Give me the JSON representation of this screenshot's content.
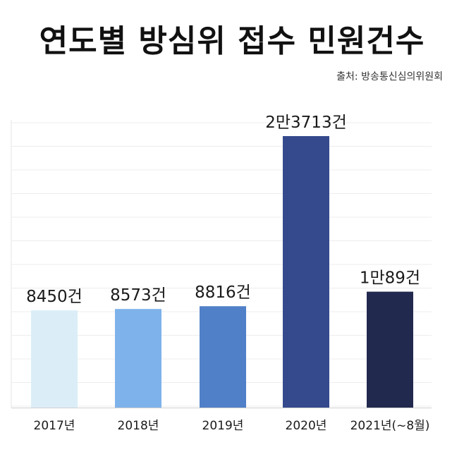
{
  "source": "출처: 방송통신심의위원회",
  "chart_data": {
    "type": "bar",
    "title": "연도별 방심위 접수 민원건수",
    "xlabel": "",
    "ylabel": "",
    "categories": [
      "2017년",
      "2018년",
      "2019년",
      "2020년",
      "2021년(~8월)"
    ],
    "values": [
      8450,
      8573,
      8816,
      23713,
      10089
    ],
    "data_labels": [
      "8450건",
      "8573건",
      "8816건",
      "2만3713건",
      "1만89건"
    ],
    "colors": [
      "#dbeef8",
      "#7eb2ea",
      "#5080c8",
      "#354a8d",
      "#22294e"
    ],
    "ylim": [
      0,
      25000
    ],
    "grid": true
  }
}
